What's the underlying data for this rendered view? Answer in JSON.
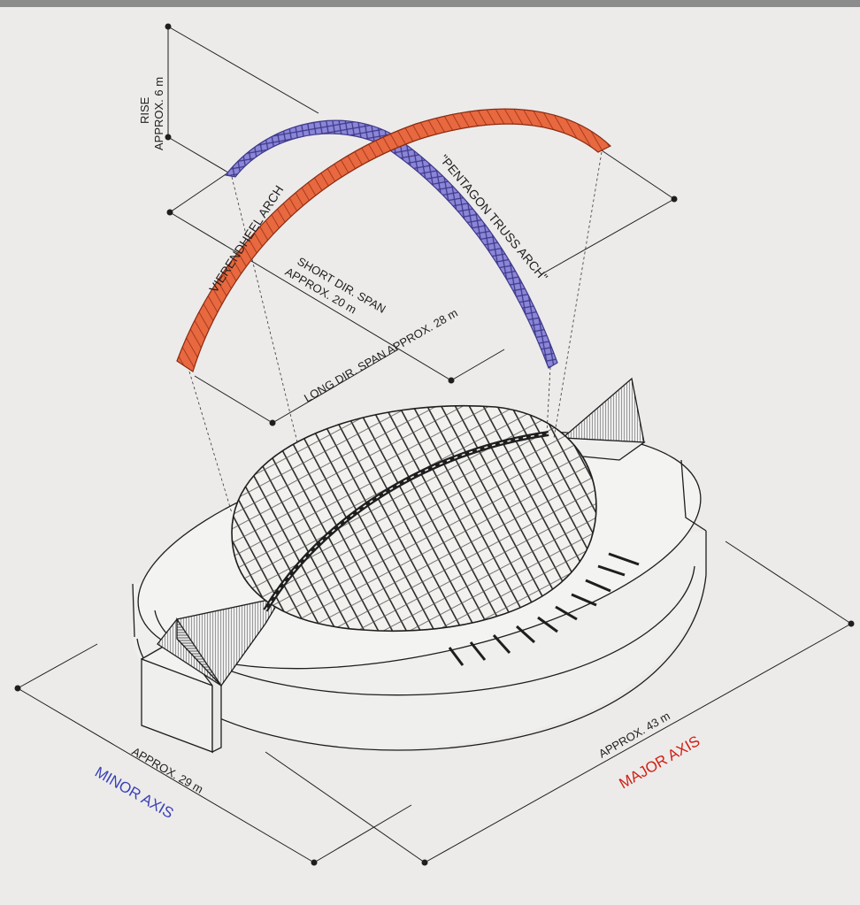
{
  "labels": {
    "rise_title": "RISE",
    "rise_value": "APPROX. 6 m",
    "vierendeel": "VIERENDHEEL ARCH",
    "pentagon": "\"PENTAGON TRUSS ARCH\"",
    "short_span_title": "SHORT DIR. SPAN",
    "short_span_value": "APPROX. 20 m",
    "long_span": "LONG DIR. SPAN APPROX. 28 m",
    "minor_value": "APPROX. 29 m",
    "minor_axis": "MINOR AXIS",
    "major_value": "APPROX. 43 m",
    "major_axis": "MAJOR AXIS"
  },
  "colors": {
    "vierendeel_arch": "#e8683f",
    "pentagon_arch": "#8b86d8",
    "minor_axis_text": "#3a40b8",
    "major_axis_text": "#d21e12",
    "line": "#1e1e1e"
  }
}
